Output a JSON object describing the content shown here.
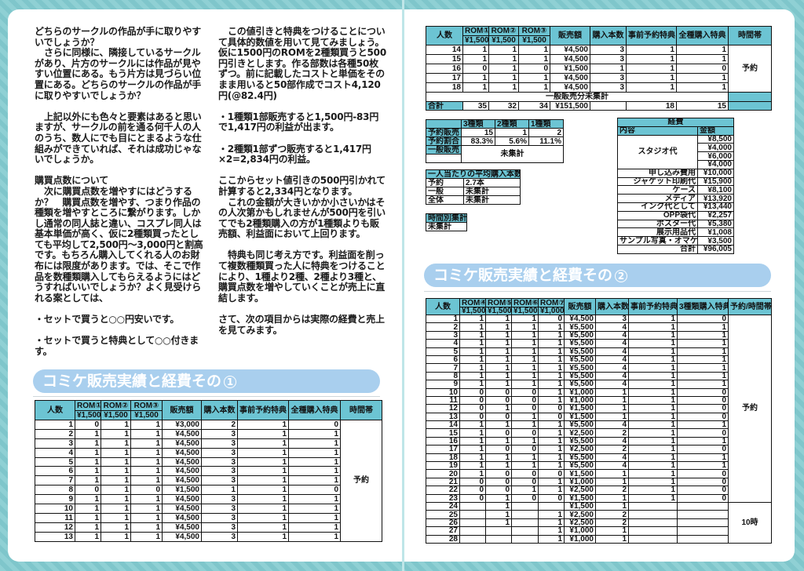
{
  "left_page": {
    "col1": {
      "paragraphs": [
        {
          "text": "どちらのサークルの作品が手に取りやすいでしょうか？",
          "indent": false
        },
        {
          "text": "さらに同様に、隣接しているサークルがあり、片方のサークルには作品が見やすい位置にある。もう片方は見づらい位置にある。どちらのサークルの作品が手に取りやすいでしょうか？",
          "indent": true
        },
        {
          "text": "",
          "gap": true
        },
        {
          "text": "上記以外にも色々と要素はあると思いますが、サークルの前を通る何千人の人のうち、数人にでも目にとまるような仕組みができていれば、それは成功じゃないでしょうか。",
          "indent": true
        },
        {
          "text": "",
          "gap": true
        },
        {
          "text": "購買点数について",
          "heading": true
        },
        {
          "text": "次に購買点数を増やすにはどうするか？　購買点数を増やす、つまり作品の種類を増やすところに繋がります。しかし通常の同人誌と違い、コスプレ同人は基本単価が高く、仮に2種類買ったとしても平均して2,500円～3,000円と割高です。もちろん購入してくれる人のお財布には限度があります。では、そこで作品を数種類購入してもらえるようにはどうすればいいでしょうか？よく見受けられる案としては、",
          "indent": true
        },
        {
          "text": "",
          "gap": true
        },
        {
          "text": "・セットで買うと○○円安いです。",
          "indent": false
        },
        {
          "text": "",
          "gap": true
        },
        {
          "text": "・セットで買うと特典として○○付きます。",
          "indent": false
        }
      ]
    },
    "col2": {
      "paragraphs": [
        {
          "text": "この値引きと特典をつけることについて具体的数値を用いて見てみましょう。仮に1500円のROMを2種類買うと500円引きとします。作る部数は各種50枚ずつ。前に記載したコストと単価をそのまま用いると50部作成でコスト4,120円(@82.4円)",
          "indent": true
        },
        {
          "text": "",
          "gap": true
        },
        {
          "text": "・1種類1部販売すると1,500円-83円で1,417円の利益が出ます。",
          "indent": false
        },
        {
          "text": "",
          "gap": true
        },
        {
          "text": "・2種類1部ずつ販売すると1,417円×2=2,834円の利益。",
          "indent": false
        },
        {
          "text": "",
          "gap": true
        },
        {
          "text": "ここからセット値引きの500円引かれて計算すると2,334円となります。",
          "indent": false
        },
        {
          "text": "これの金額が大きいかか小さいかはその人次第かもしれませんが500円を引いてでも2種類購入の方が1種類よりも販売額、利益面において上回ります。",
          "indent": true
        },
        {
          "text": "",
          "gap": true
        },
        {
          "text": "特典も同じ考え方です。利益面を削って複数種類買った人に特典をつけることにより、1種より2種、2種より3種と、購買点数を増やしていくことが売上に直結します。",
          "indent": true
        },
        {
          "text": "",
          "gap": true
        },
        {
          "text": "さて、次の項目からは実際の経費と売上を見てみます。",
          "indent": false
        }
      ]
    },
    "section_heading": {
      "title": "コミケ販売実績と経費その",
      "number": "1"
    }
  },
  "sales_table_1": {
    "headers": {
      "people": "人数",
      "rom1": "ROM①",
      "rom2": "ROM②",
      "rom3": "ROM③",
      "price1": "¥1,500",
      "price2": "¥1,500",
      "price3": "¥1,500",
      "sales": "販売額",
      "count": "購入本数",
      "pre_bonus": "事前予約特典",
      "all_bonus": "全種購入特典",
      "time": "時間帯"
    },
    "rows": [
      [
        "1",
        "0",
        "1",
        "1",
        "¥3,000",
        "2",
        "1",
        "0"
      ],
      [
        "2",
        "1",
        "1",
        "1",
        "¥4,500",
        "3",
        "1",
        "1"
      ],
      [
        "3",
        "1",
        "1",
        "1",
        "¥4,500",
        "3",
        "1",
        "1"
      ],
      [
        "4",
        "1",
        "1",
        "1",
        "¥4,500",
        "3",
        "1",
        "1"
      ],
      [
        "5",
        "1",
        "1",
        "1",
        "¥4,500",
        "3",
        "1",
        "1"
      ],
      [
        "6",
        "1",
        "1",
        "1",
        "¥4,500",
        "3",
        "1",
        "1"
      ],
      [
        "7",
        "1",
        "1",
        "1",
        "¥4,500",
        "3",
        "1",
        "1"
      ],
      [
        "8",
        "0",
        "1",
        "0",
        "¥1,500",
        "1",
        "1",
        "0"
      ],
      [
        "9",
        "1",
        "1",
        "1",
        "¥4,500",
        "3",
        "1",
        "1"
      ],
      [
        "10",
        "1",
        "1",
        "1",
        "¥4,500",
        "3",
        "1",
        "1"
      ],
      [
        "11",
        "1",
        "1",
        "1",
        "¥4,500",
        "3",
        "1",
        "1"
      ],
      [
        "12",
        "1",
        "1",
        "1",
        "¥4,500",
        "3",
        "1",
        "1"
      ],
      [
        "13",
        "1",
        "1",
        "1",
        "¥4,500",
        "3",
        "1",
        "1"
      ]
    ],
    "time_groups": [
      {
        "label": "予約",
        "span": 13
      }
    ]
  },
  "sales_table_1_cont": {
    "rows": [
      [
        "14",
        "1",
        "1",
        "1",
        "¥4,500",
        "3",
        "1",
        "1"
      ],
      [
        "15",
        "1",
        "1",
        "1",
        "¥4,500",
        "3",
        "1",
        "1"
      ],
      [
        "16",
        "0",
        "1",
        "0",
        "¥1,500",
        "1",
        "1",
        "0"
      ],
      [
        "17",
        "1",
        "1",
        "1",
        "¥4,500",
        "3",
        "1",
        "1"
      ],
      [
        "18",
        "1",
        "1",
        "1",
        "¥4,500",
        "3",
        "1",
        "1"
      ]
    ],
    "time_groups": [
      {
        "label": "予約",
        "span": 5
      }
    ],
    "general_note": "一般販売分未集計",
    "total": [
      "合計",
      "35",
      "32",
      "34",
      "¥151,500",
      "",
      "18",
      "15"
    ]
  },
  "type_table": {
    "headers": [
      "",
      "3種類",
      "2種類",
      "1種類"
    ],
    "rows": [
      [
        "予約販売",
        "15",
        "1",
        "2"
      ],
      [
        "予約割合",
        "83.3%",
        "5.6%",
        "11.1%"
      ]
    ],
    "general_label": "一般販売",
    "general_value": "未集計"
  },
  "avg_table": {
    "title": "一人当たりの平均購入本数",
    "rows": [
      [
        "予約",
        "2.7本"
      ],
      [
        "一般",
        "未集計"
      ],
      [
        "全体",
        "未集計"
      ]
    ]
  },
  "time_table": {
    "title": "時間別集計",
    "value": "未集計"
  },
  "expense_table": {
    "title": "経費",
    "headers": [
      "内容",
      "金額"
    ],
    "studio_label": "スタジオ代",
    "studio_amounts": [
      "¥8,500",
      "¥4,000",
      "¥6,000",
      "¥4,000"
    ],
    "rows": [
      [
        "申し込み費用",
        "¥10,000"
      ],
      [
        "ジャケット印刷代",
        "¥15,900"
      ],
      [
        "ケース",
        "¥8,100"
      ],
      [
        "メディア",
        "¥13,920"
      ],
      [
        "インク代として",
        "¥13,440"
      ],
      [
        "OPP袋代",
        "¥2,257"
      ],
      [
        "ポスター代",
        "¥5,380"
      ],
      [
        "展示用品代",
        "¥1,008"
      ],
      [
        "サンプル写真・オマケ用",
        "¥3,500"
      ],
      [
        "合計",
        "¥96,005"
      ]
    ]
  },
  "right_page": {
    "section_heading": {
      "title": "コミケ販売実績と経費その",
      "number": "2"
    }
  },
  "sales_table_2": {
    "headers": {
      "people": "人数",
      "rom4": "ROM④",
      "rom5": "ROM⑤",
      "rom6": "ROM⑥",
      "rom7": "ROM⑦",
      "price4": "¥1,500",
      "price5": "¥1,500",
      "price6": "¥1,500",
      "price7": "¥1,000",
      "sales": "販売額",
      "count": "購入本数",
      "pre_bonus": "事前予約特典",
      "all3_bonus": "3種類購入特典",
      "time": "予約/時間帯"
    },
    "rows": [
      [
        "1",
        "1",
        "1",
        "1",
        "0",
        "¥4,500",
        "3",
        "1",
        "0"
      ],
      [
        "2",
        "1",
        "1",
        "1",
        "1",
        "¥5,500",
        "4",
        "1",
        "1"
      ],
      [
        "3",
        "1",
        "1",
        "1",
        "1",
        "¥5,500",
        "4",
        "1",
        "1"
      ],
      [
        "4",
        "1",
        "1",
        "1",
        "1",
        "¥5,500",
        "4",
        "1",
        "1"
      ],
      [
        "5",
        "1",
        "1",
        "1",
        "1",
        "¥5,500",
        "4",
        "1",
        "1"
      ],
      [
        "6",
        "1",
        "1",
        "1",
        "1",
        "¥5,500",
        "4",
        "1",
        "1"
      ],
      [
        "7",
        "1",
        "1",
        "1",
        "1",
        "¥5,500",
        "4",
        "1",
        "1"
      ],
      [
        "8",
        "1",
        "1",
        "1",
        "1",
        "¥5,500",
        "4",
        "1",
        "1"
      ],
      [
        "9",
        "1",
        "1",
        "1",
        "1",
        "¥5,500",
        "4",
        "1",
        "1"
      ],
      [
        "10",
        "0",
        "0",
        "0",
        "1",
        "¥1,000",
        "1",
        "1",
        "0"
      ],
      [
        "11",
        "0",
        "0",
        "0",
        "1",
        "¥1,000",
        "1",
        "1",
        "0"
      ],
      [
        "12",
        "0",
        "1",
        "0",
        "0",
        "¥1,500",
        "1",
        "1",
        "0"
      ],
      [
        "13",
        "0",
        "0",
        "1",
        "0",
        "¥1,500",
        "1",
        "1",
        "0"
      ],
      [
        "14",
        "1",
        "1",
        "1",
        "1",
        "¥5,500",
        "4",
        "1",
        "1"
      ],
      [
        "15",
        "1",
        "0",
        "0",
        "1",
        "¥2,500",
        "2",
        "1",
        "0"
      ],
      [
        "16",
        "1",
        "1",
        "1",
        "1",
        "¥5,500",
        "4",
        "1",
        "1"
      ],
      [
        "17",
        "1",
        "0",
        "0",
        "1",
        "¥2,500",
        "2",
        "1",
        "0"
      ],
      [
        "18",
        "1",
        "1",
        "1",
        "1",
        "¥5,500",
        "4",
        "1",
        "1"
      ],
      [
        "19",
        "1",
        "1",
        "1",
        "1",
        "¥5,500",
        "4",
        "1",
        "1"
      ],
      [
        "20",
        "1",
        "0",
        "0",
        "0",
        "¥1,500",
        "1",
        "1",
        "0"
      ],
      [
        "21",
        "0",
        "0",
        "0",
        "1",
        "¥1,000",
        "1",
        "1",
        "0"
      ],
      [
        "22",
        "0",
        "0",
        "1",
        "1",
        "¥2,500",
        "2",
        "1",
        "0"
      ],
      [
        "23",
        "0",
        "1",
        "0",
        "0",
        "¥1,500",
        "1",
        "1",
        "0"
      ],
      [
        "24",
        "",
        "1",
        "",
        "",
        "¥1,500",
        "1",
        "",
        ""
      ],
      [
        "25",
        "",
        "1",
        "",
        "1",
        "¥2,500",
        "2",
        "",
        ""
      ],
      [
        "26",
        "",
        "1",
        "",
        "1",
        "¥2,500",
        "2",
        "",
        ""
      ],
      [
        "27",
        "",
        "",
        "",
        "1",
        "¥1,000",
        "1",
        "",
        ""
      ],
      [
        "28",
        "",
        "",
        "",
        "1",
        "¥1,000",
        "1",
        "",
        ""
      ]
    ],
    "time_groups": [
      {
        "label": "予約",
        "span": 23
      },
      {
        "label": "10時",
        "span": 5
      }
    ]
  },
  "colors": {
    "frame": "#86cbd0",
    "table_header": "#6cc4d3",
    "heading_pill": "#a9cfee"
  }
}
